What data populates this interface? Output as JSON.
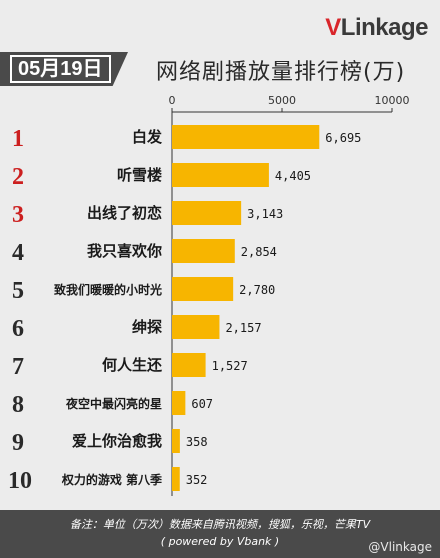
{
  "brand": {
    "v": "V",
    "rest": "Linkage"
  },
  "date_tag": "05月19日",
  "title": "网络剧播放量排行榜(万)",
  "footer": {
    "note_line1": "备注：单位（万次）数据来自腾讯视频，搜狐，乐视，芒果TV",
    "note_line2": "( powered by Vbank )"
  },
  "watermark": "@Vlinkage",
  "colors": {
    "bar": "#f7b500",
    "rank_top": "#cc1f1f",
    "rank_other": "#2a2a2a",
    "axis": "#333333"
  },
  "chart_data": {
    "type": "bar",
    "orientation": "horizontal",
    "xlim": [
      0,
      10000
    ],
    "xticks": [
      "0",
      "5000",
      "10000"
    ],
    "ranks": [
      "1",
      "2",
      "3",
      "4",
      "5",
      "6",
      "7",
      "8",
      "9",
      "10"
    ],
    "categories": [
      "白发",
      "听雪楼",
      "出线了初恋",
      "我只喜欢你",
      "致我们暖暖的小时光",
      "绅探",
      "何人生还",
      "夜空中最闪亮的星",
      "爱上你治愈我",
      "权力的游戏 第八季"
    ],
    "values": [
      6695,
      4405,
      3143,
      2854,
      2780,
      2157,
      1527,
      607,
      358,
      352
    ],
    "value_labels": [
      "6,695",
      "4,405",
      "3,143",
      "2,854",
      "2,780",
      "2,157",
      "1,527",
      "607",
      "358",
      "352"
    ]
  }
}
